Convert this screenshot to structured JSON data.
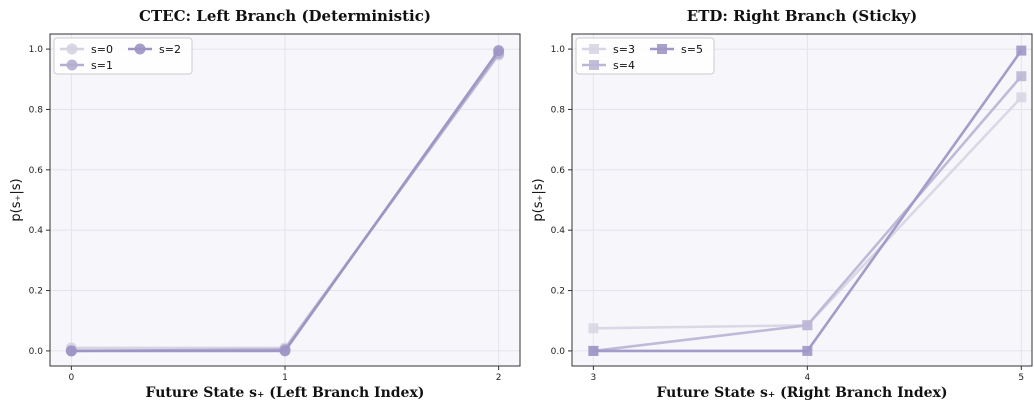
{
  "chart_data": [
    {
      "type": "line",
      "title": "CTEC: Left Branch (Deterministic)",
      "xlabel": "Future State s₊ (Left Branch Index)",
      "ylabel": "p(s₊|s)",
      "x": [
        0,
        1,
        2
      ],
      "xlim": [
        -0.1,
        2.1
      ],
      "ylim": [
        -0.05,
        1.05
      ],
      "yticks": [
        0.0,
        0.2,
        0.4,
        0.6,
        0.8,
        1.0
      ],
      "ytick_labels": [
        "0.0",
        "0.2",
        "0.4",
        "0.6",
        "0.8",
        "1.0"
      ],
      "xtick_labels": [
        "0",
        "1",
        "2"
      ],
      "marker": "circle",
      "grid": true,
      "legend_position": "top-left",
      "series": [
        {
          "name": "s=0",
          "values": [
            0.01,
            0.01,
            0.98
          ],
          "color": "#d5d3e2"
        },
        {
          "name": "s=1",
          "values": [
            0.0,
            0.005,
            0.985
          ],
          "color": "#b4aed0"
        },
        {
          "name": "s=2",
          "values": [
            0.0,
            0.0,
            0.995
          ],
          "color": "#9d94c4"
        }
      ]
    },
    {
      "type": "line",
      "title": "ETD: Right Branch (Sticky)",
      "xlabel": "Future State s₊ (Right Branch Index)",
      "ylabel": "p(s₊|s)",
      "x": [
        3,
        4,
        5
      ],
      "xlim": [
        2.9,
        5.05
      ],
      "ylim": [
        -0.05,
        1.05
      ],
      "yticks": [
        0.0,
        0.2,
        0.4,
        0.6,
        0.8,
        1.0
      ],
      "ytick_labels": [
        "0.0",
        "0.2",
        "0.4",
        "0.6",
        "0.8",
        "1.0"
      ],
      "xtick_labels": [
        "3",
        "4",
        "5"
      ],
      "marker": "square",
      "grid": true,
      "legend_position": "top-left",
      "series": [
        {
          "name": "s=3",
          "values": [
            0.075,
            0.085,
            0.84
          ],
          "color": "#d8d6e4"
        },
        {
          "name": "s=4",
          "values": [
            0.0,
            0.085,
            0.91
          ],
          "color": "#bcb6d6"
        },
        {
          "name": "s=5",
          "values": [
            0.0,
            0.0,
            0.995
          ],
          "color": "#a097c6"
        }
      ]
    }
  ]
}
